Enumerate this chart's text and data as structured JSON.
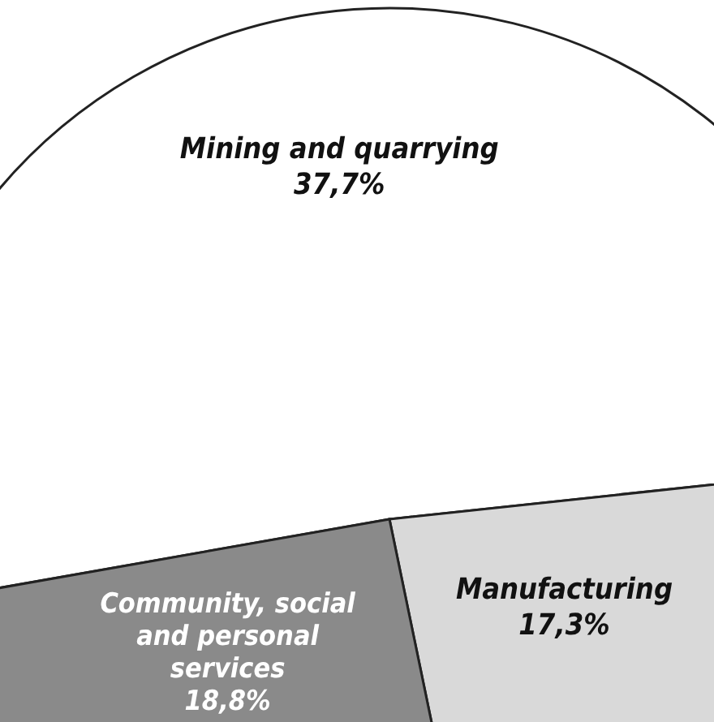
{
  "chart_data": {
    "type": "pie",
    "categories": [
      "Mining and quarrying",
      "Manufacturing",
      "Community, social and personal services"
    ],
    "values": [
      37.7,
      17.3,
      18.8
    ],
    "value_labels": [
      "37,7%",
      "17,3%",
      "18,8%"
    ],
    "colors": [
      "#ffffff",
      "#d9d9d9",
      "#8a8a8a"
    ]
  }
}
